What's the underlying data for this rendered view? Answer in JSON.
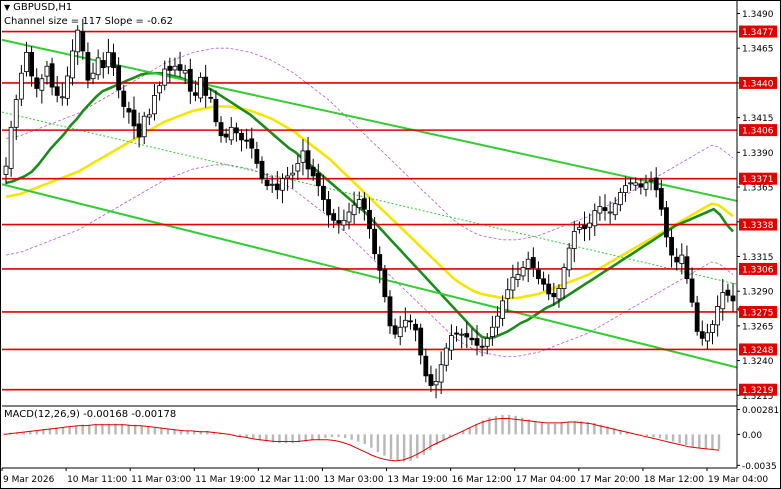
{
  "header": {
    "symbol_title": "GBPUSD,H1",
    "channel_label": "Channel size = 117 Slope = -0.62",
    "macd_label": "MACD(12,26,9) -0.00168 -0.00178"
  },
  "colors": {
    "background": "#ffffff",
    "candle": "#000000",
    "level_line": "#e00000",
    "level_tag_bg": "#e00000",
    "level_tag_text": "#ffffff",
    "price_tag_bg": "#e00000",
    "channel_line": "#33cc33",
    "ma_fast": "#1a8c1a",
    "ma_slow": "#f5e600",
    "bollinger": "#b060d0",
    "macd_hist": "#b8b8b8",
    "macd_signal": "#e00000",
    "axis": "#000000"
  },
  "chart_data": [
    {
      "type": "candlestick",
      "symbol": "GBPUSD",
      "timeframe": "H1",
      "y_axis": {
        "ticks": [
          1.349,
          1.3465,
          1.344,
          1.3415,
          1.339,
          1.3365,
          1.334,
          1.3315,
          1.329,
          1.3265,
          1.324,
          1.3215
        ],
        "range": [
          1.3208,
          1.3499
        ]
      },
      "x_axis": {
        "ticks": [
          "9 Mar 2026",
          "10 Mar 11:00",
          "11 Mar 03:00",
          "11 Mar 19:00",
          "12 Mar 11:00",
          "13 Mar 03:00",
          "13 Mar 19:00",
          "16 Mar 12:00",
          "17 Mar 04:00",
          "17 Mar 20:00",
          "18 Mar 12:00",
          "19 Mar 04:00"
        ]
      },
      "levels": [
        1.3477,
        1.344,
        1.3406,
        1.3371,
        1.3338,
        1.3306,
        1.3275,
        1.3248,
        1.3219
      ],
      "level_labels": [
        "1.3477",
        "1.3440",
        "1.3406",
        "1.3371",
        "1.3338",
        "1.3306",
        "1.3275",
        "1.3248",
        "1.3219"
      ],
      "current_price": 1.3277,
      "close": [
        1.338,
        1.3408,
        1.3428,
        1.3447,
        1.3462,
        1.3445,
        1.3436,
        1.3443,
        1.3452,
        1.3437,
        1.3431,
        1.343,
        1.3445,
        1.3463,
        1.3478,
        1.3463,
        1.3442,
        1.3447,
        1.3458,
        1.3451,
        1.3462,
        1.3451,
        1.3435,
        1.3423,
        1.3419,
        1.3409,
        1.3401,
        1.3416,
        1.3417,
        1.3431,
        1.3438,
        1.345,
        1.3449,
        1.3452,
        1.3449,
        1.3449,
        1.3434,
        1.3431,
        1.3444,
        1.3431,
        1.3429,
        1.3412,
        1.3402,
        1.3401,
        1.3408,
        1.3404,
        1.3399,
        1.3398,
        1.3393,
        1.3382,
        1.3371,
        1.3366,
        1.3367,
        1.3363,
        1.3371,
        1.3373,
        1.3375,
        1.3382,
        1.3391,
        1.3378,
        1.3373,
        1.3366,
        1.3356,
        1.3345,
        1.3341,
        1.3339,
        1.3341,
        1.3347,
        1.3352,
        1.3356,
        1.3349,
        1.3335,
        1.3317,
        1.3305,
        1.3286,
        1.3265,
        1.3259,
        1.3264,
        1.3269,
        1.3268,
        1.3262,
        1.3244,
        1.3229,
        1.3222,
        1.3225,
        1.3237,
        1.3249,
        1.3258,
        1.3259,
        1.3259,
        1.3257,
        1.3255,
        1.3251,
        1.325,
        1.3256,
        1.3264,
        1.3272,
        1.3283,
        1.3291,
        1.33,
        1.3302,
        1.3307,
        1.3313,
        1.3307,
        1.3299,
        1.3295,
        1.3288,
        1.3286,
        1.3292,
        1.3307,
        1.3321,
        1.3333,
        1.3336,
        1.3335,
        1.3339,
        1.3348,
        1.3351,
        1.3348,
        1.3347,
        1.3353,
        1.3361,
        1.3366,
        1.3368,
        1.3368,
        1.3365,
        1.3368,
        1.337,
        1.3363,
        1.3349,
        1.3329,
        1.3316,
        1.3311,
        1.3316,
        1.3299,
        1.3282,
        1.3261,
        1.3256,
        1.326,
        1.3266,
        1.3279,
        1.3289,
        1.3287,
        1.3283
      ],
      "ma_fast": [
        1.3368,
        1.3369,
        1.3371,
        1.3373,
        1.3376,
        1.3381,
        1.3387,
        1.3393,
        1.3398,
        1.3403,
        1.3409,
        1.3414,
        1.342,
        1.3425,
        1.343,
        1.3434,
        1.3436,
        1.3438,
        1.344,
        1.3442,
        1.3444,
        1.3446,
        1.3447,
        1.3447,
        1.3447,
        1.3446,
        1.3445,
        1.3444,
        1.3442,
        1.3441,
        1.3439,
        1.3437,
        1.3435,
        1.3432,
        1.3429,
        1.3426,
        1.3423,
        1.342,
        1.3417,
        1.3413,
        1.3409,
        1.3405,
        1.3401,
        1.3397,
        1.3393,
        1.339,
        1.3386,
        1.3382,
        1.3378,
        1.3374,
        1.337,
        1.3366,
        1.3362,
        1.3358,
        1.3354,
        1.335,
        1.3346,
        1.3341,
        1.3336,
        1.3331,
        1.3326,
        1.3321,
        1.3316,
        1.3311,
        1.3306,
        1.3301,
        1.3296,
        1.3291,
        1.3286,
        1.3281,
        1.3276,
        1.3271,
        1.3266,
        1.3261,
        1.3257,
        1.3256,
        1.3257,
        1.3259,
        1.3261,
        1.3264,
        1.3267,
        1.3269,
        1.3272,
        1.3275,
        1.3278,
        1.328,
        1.3283,
        1.3286,
        1.3289,
        1.3292,
        1.3295,
        1.3298,
        1.3301,
        1.3304,
        1.3307,
        1.331,
        1.3313,
        1.3316,
        1.3319,
        1.3322,
        1.3325,
        1.3328,
        1.3331,
        1.3334,
        1.3337,
        1.3339,
        1.3341,
        1.3343,
        1.3345,
        1.3347,
        1.3349,
        1.3345,
        1.3338,
        1.3333
      ],
      "ma_slow": [
        1.3358,
        1.3359,
        1.336,
        1.3362,
        1.3364,
        1.3366,
        1.3368,
        1.337,
        1.3372,
        1.3374,
        1.3376,
        1.3379,
        1.3382,
        1.3385,
        1.3388,
        1.3391,
        1.3394,
        1.3397,
        1.34,
        1.3403,
        1.3406,
        1.3409,
        1.3412,
        1.3414,
        1.3416,
        1.3418,
        1.342,
        1.3421,
        1.3422,
        1.3423,
        1.3423,
        1.3423,
        1.3422,
        1.3421,
        1.342,
        1.3418,
        1.3416,
        1.3414,
        1.3411,
        1.3408,
        1.3405,
        1.3401,
        1.3397,
        1.3393,
        1.3389,
        1.3385,
        1.338,
        1.3375,
        1.337,
        1.3365,
        1.336,
        1.3355,
        1.335,
        1.3345,
        1.334,
        1.3335,
        1.333,
        1.3325,
        1.332,
        1.3315,
        1.331,
        1.3305,
        1.33,
        1.3296,
        1.3293,
        1.329,
        1.3288,
        1.3287,
        1.3286,
        1.3285,
        1.3285,
        1.3285,
        1.3286,
        1.3287,
        1.3288,
        1.329,
        1.3292,
        1.3294,
        1.3296,
        1.3298,
        1.33,
        1.3302,
        1.3305,
        1.3308,
        1.3311,
        1.3314,
        1.3317,
        1.332,
        1.3323,
        1.3326,
        1.3329,
        1.3332,
        1.3335,
        1.3338,
        1.3341,
        1.3344,
        1.3347,
        1.335,
        1.3353,
        1.3352,
        1.3348,
        1.3344
      ],
      "channel": {
        "upper": [
          [
            0,
            1.3471
          ],
          [
            780,
            1.3355
          ]
        ],
        "lower": [
          [
            0,
            1.3367
          ],
          [
            780,
            1.3235
          ]
        ],
        "middle_dotted": [
          [
            0,
            1.3419
          ],
          [
            780,
            1.3295
          ]
        ]
      }
    },
    {
      "type": "bar",
      "name": "MACD",
      "label": "MACD(12,26,9) -0.00168 -0.00178",
      "y_axis": {
        "ticks": [
          0.00281,
          0.0,
          -0.0035
        ],
        "range": [
          -0.0038,
          0.0031
        ]
      },
      "histogram": [
        0.0001,
        0.0002,
        0.0002,
        0.0003,
        0.0004,
        0.0005,
        0.0006,
        0.0007,
        0.0008,
        0.0008,
        0.0009,
        0.001,
        0.0011,
        0.0011,
        0.0012,
        0.0012,
        0.0012,
        0.0012,
        0.0012,
        0.0011,
        0.0011,
        0.001,
        0.0009,
        0.0008,
        0.0007,
        0.0006,
        0.0005,
        0.0004,
        0.0004,
        0.0004,
        0.0004,
        0.0004,
        0.0003,
        0.0002,
        0.0001,
        -0.0001,
        -0.0002,
        -0.0004,
        -0.0005,
        -0.0007,
        -0.0008,
        -0.0009,
        -0.001,
        -0.001,
        -0.001,
        -0.0009,
        -0.0008,
        -0.0007,
        -0.0006,
        -0.0004,
        -0.0003,
        -0.0003,
        -0.0004,
        -0.0006,
        -0.0008,
        -0.0011,
        -0.0015,
        -0.002,
        -0.0024,
        -0.0028,
        -0.003,
        -0.0031,
        -0.003,
        -0.0027,
        -0.0023,
        -0.0018,
        -0.0012,
        -0.0007,
        -0.0003,
        0.0001,
        0.0004,
        0.0008,
        0.0012,
        0.0016,
        0.0019,
        0.0021,
        0.0022,
        0.0022,
        0.0021,
        0.0019,
        0.0017,
        0.0015,
        0.0013,
        0.0012,
        0.0012,
        0.0013,
        0.0014,
        0.0015,
        0.0015,
        0.0014,
        0.0013,
        0.0011,
        0.0009,
        0.0007,
        0.0005,
        0.0003,
        0.0001,
        -0.0001,
        -0.0002,
        -0.0003,
        -0.0004,
        -0.0006,
        -0.0008,
        -0.001,
        -0.0012,
        -0.0014,
        -0.0015,
        -0.0016,
        -0.0017,
        -0.0017
      ],
      "signal": [
        0.0,
        0.0001,
        0.0002,
        0.0003,
        0.0004,
        0.0005,
        0.0006,
        0.0007,
        0.0008,
        0.0009,
        0.001,
        0.001,
        0.0011,
        0.0011,
        0.0011,
        0.0011,
        0.0011,
        0.001,
        0.001,
        0.0009,
        0.0008,
        0.0007,
        0.0006,
        0.0005,
        0.0004,
        0.0004,
        0.0003,
        0.0003,
        0.0002,
        0.0001,
        0.0,
        -0.0002,
        -0.0003,
        -0.0005,
        -0.0006,
        -0.0007,
        -0.0008,
        -0.0008,
        -0.0008,
        -0.0008,
        -0.0007,
        -0.0006,
        -0.0006,
        -0.0006,
        -0.0007,
        -0.0009,
        -0.0012,
        -0.0016,
        -0.002,
        -0.0024,
        -0.0027,
        -0.0029,
        -0.003,
        -0.0029,
        -0.0026,
        -0.0022,
        -0.0017,
        -0.0012,
        -0.0008,
        -0.0004,
        0.0,
        0.0004,
        0.0008,
        0.0012,
        0.0015,
        0.0017,
        0.0018,
        0.0018,
        0.0017,
        0.0016,
        0.0015,
        0.0014,
        0.0013,
        0.0013,
        0.0013,
        0.0014,
        0.0014,
        0.0013,
        0.0012,
        0.001,
        0.0008,
        0.0006,
        0.0004,
        0.0002,
        0.0,
        -0.0002,
        -0.0004,
        -0.0006,
        -0.0008,
        -0.001,
        -0.0012,
        -0.0014,
        -0.0015,
        -0.0016,
        -0.0017,
        -0.0018
      ]
    }
  ]
}
